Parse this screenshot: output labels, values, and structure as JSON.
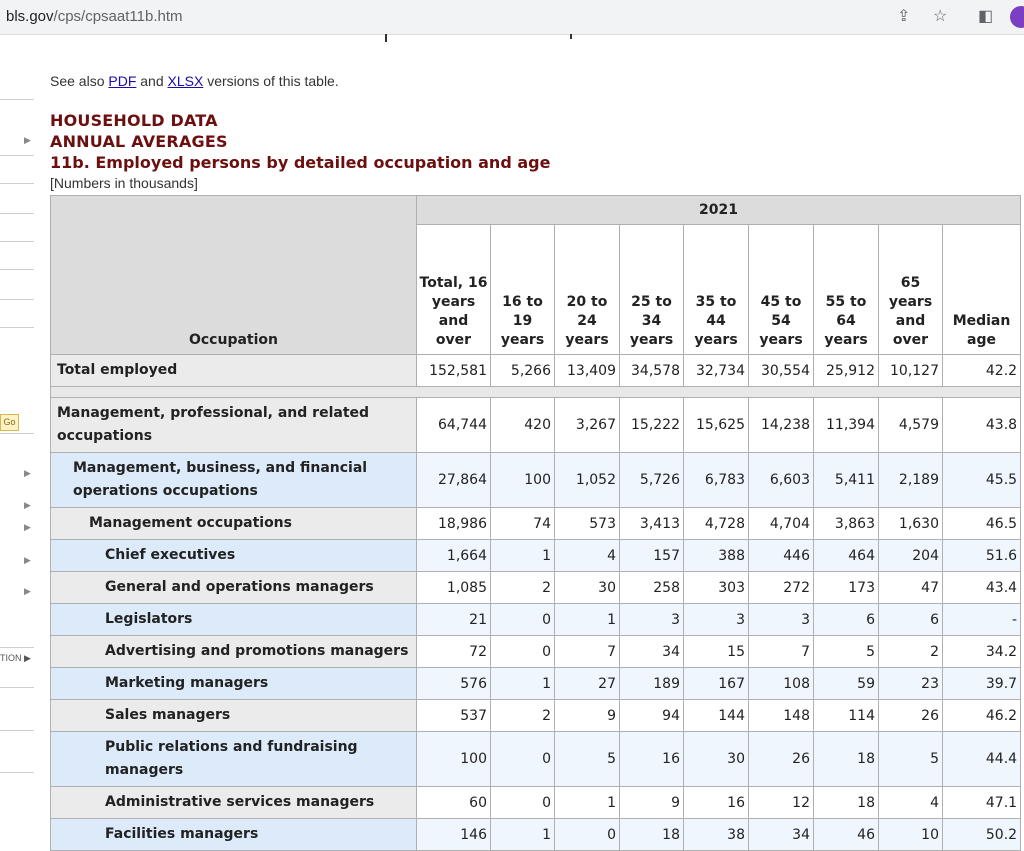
{
  "browser": {
    "url_domain": "bls.gov",
    "url_path": "/cps/cpsaat11b.htm"
  },
  "sidebar": {
    "go_label": "Go",
    "truncated_label": "TION"
  },
  "see_also": {
    "prefix": "See also ",
    "pdf": "PDF",
    "and": " and ",
    "xlsx": "XLSX",
    "suffix": " versions of this table."
  },
  "headings": {
    "h1": "HOUSEHOLD DATA",
    "h2": "ANNUAL AVERAGES",
    "h3": "11b. Employed persons by detailed occupation and age",
    "note": "[Numbers in thousands]"
  },
  "table": {
    "year": "2021",
    "occupation_header": "Occupation",
    "columns": [
      "Total, 16 years and over",
      "16 to 19 years",
      "20 to 24 years",
      "25 to 34 years",
      "35 to 44 years",
      "45 to 54 years",
      "55 to 64 years",
      "65 years and over",
      "Median age"
    ],
    "total_row": {
      "label": "Total employed",
      "values": [
        "152,581",
        "5,266",
        "13,409",
        "34,578",
        "32,734",
        "30,554",
        "25,912",
        "10,127",
        "42.2"
      ]
    },
    "rows": [
      {
        "label": "Management, professional, and related occupations",
        "values": [
          "64,744",
          "420",
          "3,267",
          "15,222",
          "15,625",
          "14,238",
          "11,394",
          "4,579",
          "43.8"
        ]
      },
      {
        "label": "Management, business, and financial operations occupations",
        "values": [
          "27,864",
          "100",
          "1,052",
          "5,726",
          "6,783",
          "6,603",
          "5,411",
          "2,189",
          "45.5"
        ]
      },
      {
        "label": "Management occupations",
        "values": [
          "18,986",
          "74",
          "573",
          "3,413",
          "4,728",
          "4,704",
          "3,863",
          "1,630",
          "46.5"
        ]
      },
      {
        "label": "Chief executives",
        "values": [
          "1,664",
          "1",
          "4",
          "157",
          "388",
          "446",
          "464",
          "204",
          "51.6"
        ]
      },
      {
        "label": "General and operations managers",
        "values": [
          "1,085",
          "2",
          "30",
          "258",
          "303",
          "272",
          "173",
          "47",
          "43.4"
        ]
      },
      {
        "label": "Legislators",
        "values": [
          "21",
          "0",
          "1",
          "3",
          "3",
          "3",
          "6",
          "6",
          "-"
        ]
      },
      {
        "label": "Advertising and promotions managers",
        "values": [
          "72",
          "0",
          "7",
          "34",
          "15",
          "7",
          "5",
          "2",
          "34.2"
        ]
      },
      {
        "label": "Marketing managers",
        "values": [
          "576",
          "1",
          "27",
          "189",
          "167",
          "108",
          "59",
          "23",
          "39.7"
        ]
      },
      {
        "label": "Sales managers",
        "values": [
          "537",
          "2",
          "9",
          "94",
          "144",
          "148",
          "114",
          "26",
          "46.2"
        ]
      },
      {
        "label": "Public relations and fundraising managers",
        "values": [
          "100",
          "0",
          "5",
          "16",
          "30",
          "26",
          "18",
          "5",
          "44.4"
        ]
      },
      {
        "label": "Administrative services managers",
        "values": [
          "60",
          "0",
          "1",
          "9",
          "16",
          "12",
          "18",
          "4",
          "47.1"
        ]
      },
      {
        "label": "Facilities managers",
        "values": [
          "146",
          "1",
          "0",
          "18",
          "38",
          "34",
          "46",
          "10",
          "50.2"
        ]
      }
    ]
  }
}
